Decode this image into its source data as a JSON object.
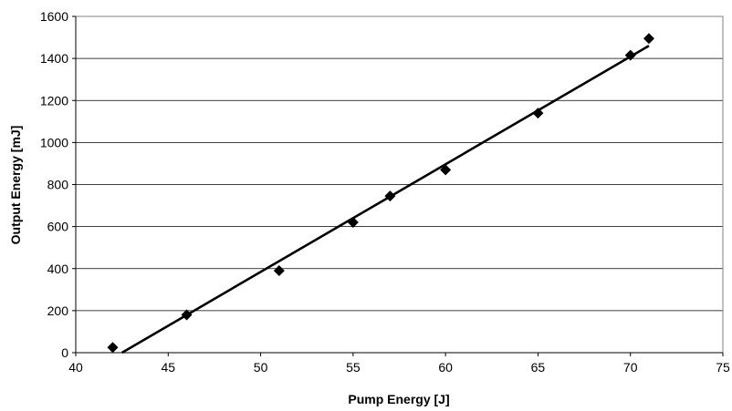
{
  "chart_data": {
    "type": "scatter",
    "title": "",
    "xlabel": "Pump Energy [J]",
    "ylabel": "Output Energy [mJ]",
    "xlim": [
      40,
      75
    ],
    "ylim": [
      0,
      1600
    ],
    "xticks": [
      40,
      45,
      50,
      55,
      60,
      65,
      70,
      75
    ],
    "yticks": [
      0,
      200,
      400,
      600,
      800,
      1000,
      1200,
      1400,
      1600
    ],
    "grid": "horizontal",
    "legend": "none",
    "marker": "diamond",
    "marker_color": "#000000",
    "series": [
      {
        "x": [
          42,
          46,
          51,
          55,
          57,
          60,
          65,
          70,
          71
        ],
        "y": [
          25,
          180,
          390,
          620,
          745,
          870,
          1140,
          1415,
          1495
        ]
      }
    ],
    "trendline": {
      "type": "linear",
      "x": [
        42.5,
        71
      ],
      "y": [
        0,
        1460
      ]
    }
  }
}
